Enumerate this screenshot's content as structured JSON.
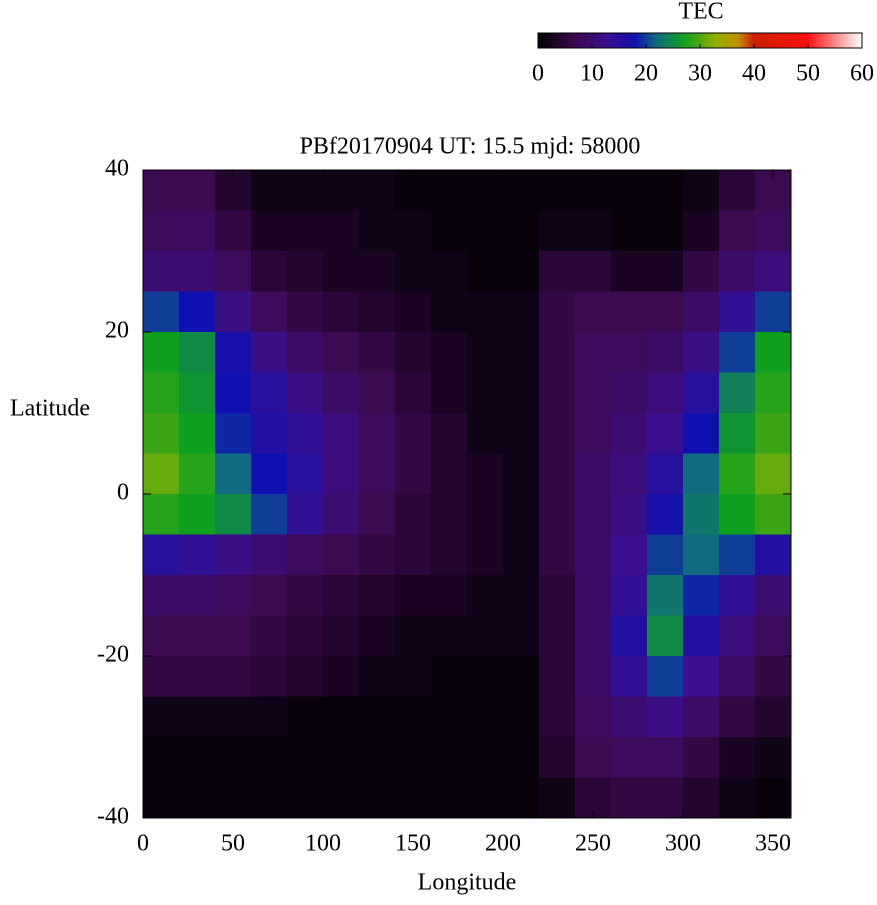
{
  "chart_data": {
    "type": "heatmap",
    "title": "PBf20170904  UT: 15.5  mjd: 58000",
    "xlabel": "Longitude",
    "ylabel": "Latitude",
    "colorbar_label": "TEC",
    "x": [
      10,
      30,
      50,
      70,
      90,
      110,
      130,
      150,
      170,
      190,
      210,
      230,
      250,
      270,
      290,
      310,
      330,
      350
    ],
    "y": [
      37.5,
      32.5,
      27.5,
      22.5,
      17.5,
      12.5,
      7.5,
      2.5,
      -2.5,
      -7.5,
      -12.5,
      -17.5,
      -22.5,
      -27.5,
      -32.5,
      -37.5
    ],
    "z": [
      [
        7,
        7,
        4,
        2,
        2,
        2,
        2,
        1,
        1,
        1,
        1,
        1,
        1,
        1,
        1,
        2,
        5,
        7
      ],
      [
        8,
        8,
        6,
        3,
        3,
        3,
        2,
        2,
        1,
        1,
        1,
        2,
        2,
        1,
        1,
        3,
        7,
        8
      ],
      [
        10,
        10,
        8,
        5,
        4,
        3,
        3,
        2,
        2,
        1,
        1,
        5,
        5,
        3,
        3,
        6,
        9,
        11
      ],
      [
        20,
        18,
        12,
        8,
        6,
        5,
        4,
        3,
        2,
        2,
        2,
        6,
        7,
        7,
        7,
        9,
        14,
        20
      ],
      [
        27,
        25,
        17,
        12,
        9,
        7,
        6,
        4,
        3,
        2,
        2,
        6,
        8,
        8,
        9,
        12,
        20,
        27
      ],
      [
        28,
        26,
        18,
        15,
        12,
        9,
        7,
        5,
        3,
        2,
        2,
        6,
        8,
        9,
        11,
        15,
        24,
        28
      ],
      [
        29,
        27,
        19,
        16,
        14,
        11,
        8,
        6,
        4,
        2,
        2,
        6,
        8,
        10,
        13,
        18,
        26,
        29
      ],
      [
        31,
        28,
        22,
        18,
        15,
        11,
        8,
        6,
        4,
        3,
        2,
        6,
        9,
        11,
        15,
        22,
        28,
        31
      ],
      [
        28,
        27,
        25,
        20,
        14,
        10,
        7,
        5,
        4,
        3,
        2,
        6,
        9,
        12,
        17,
        23,
        27,
        29
      ],
      [
        15,
        14,
        12,
        10,
        8,
        7,
        6,
        5,
        4,
        3,
        2,
        6,
        9,
        13,
        20,
        22,
        20,
        16
      ],
      [
        9,
        9,
        8,
        7,
        6,
        5,
        4,
        3,
        3,
        2,
        2,
        5,
        9,
        14,
        23,
        19,
        14,
        10
      ],
      [
        7,
        7,
        7,
        6,
        5,
        4,
        3,
        2,
        2,
        2,
        2,
        5,
        9,
        16,
        25,
        16,
        11,
        8
      ],
      [
        6,
        6,
        6,
        5,
        4,
        3,
        2,
        2,
        1,
        1,
        1,
        5,
        9,
        14,
        20,
        13,
        9,
        6
      ],
      [
        2,
        2,
        2,
        2,
        1,
        1,
        1,
        1,
        1,
        1,
        1,
        5,
        8,
        10,
        12,
        9,
        6,
        4
      ],
      [
        1,
        1,
        1,
        1,
        1,
        1,
        1,
        1,
        1,
        1,
        1,
        4,
        7,
        8,
        8,
        6,
        3,
        2
      ],
      [
        1,
        1,
        1,
        1,
        1,
        1,
        1,
        1,
        1,
        1,
        1,
        2,
        5,
        6,
        6,
        4,
        2,
        1
      ]
    ],
    "xlim": [
      0,
      360
    ],
    "xticks": [
      0,
      50,
      100,
      150,
      200,
      250,
      300,
      350
    ],
    "ylim": [
      -40,
      40
    ],
    "yticks": [
      -40,
      -20,
      0,
      20,
      40
    ],
    "zlim": [
      0,
      60
    ],
    "zticks": [
      0,
      10,
      20,
      30,
      40,
      50,
      60
    ],
    "colormap": [
      [
        0,
        "#000000"
      ],
      [
        7,
        "#3c0a50"
      ],
      [
        13,
        "#3a1090"
      ],
      [
        18,
        "#1010b0"
      ],
      [
        22,
        "#106a80"
      ],
      [
        27,
        "#10a020"
      ],
      [
        33,
        "#90b000"
      ],
      [
        37,
        "#c09000"
      ],
      [
        40,
        "#c82000"
      ],
      [
        50,
        "#ff1010"
      ],
      [
        60,
        "#ffffff"
      ]
    ]
  }
}
